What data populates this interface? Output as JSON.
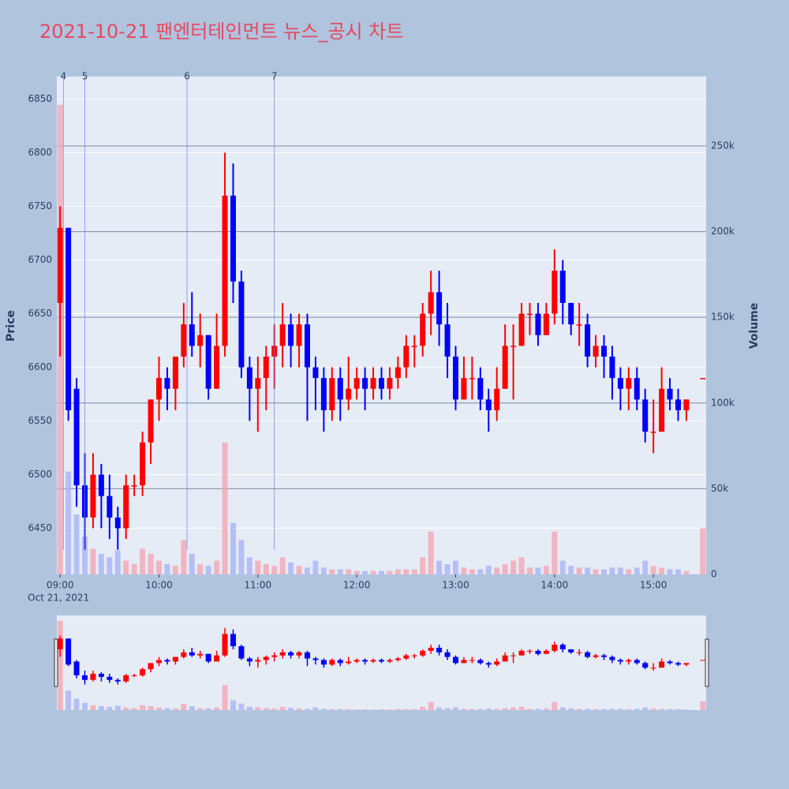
{
  "chart_data": {
    "type": "candlestick",
    "title": "2021-10-21 팬엔터테인먼트 뉴스_공시 차트",
    "ylabel": "Price",
    "y2label": "Volume",
    "x": [
      "2021-10-21 09:00",
      "2021-10-21 09:05",
      "2021-10-21 09:10",
      "2021-10-21 09:15",
      "2021-10-21 09:20",
      "2021-10-21 09:25",
      "2021-10-21 09:30",
      "2021-10-21 09:35",
      "2021-10-21 09:40",
      "2021-10-21 09:45",
      "2021-10-21 09:50",
      "2021-10-21 09:55",
      "2021-10-21 10:00",
      "2021-10-21 10:05",
      "2021-10-21 10:10",
      "2021-10-21 10:15",
      "2021-10-21 10:20",
      "2021-10-21 10:25",
      "2021-10-21 10:30",
      "2021-10-21 10:35",
      "2021-10-21 10:40",
      "2021-10-21 10:45",
      "2021-10-21 10:50",
      "2021-10-21 10:55",
      "2021-10-21 11:00",
      "2021-10-21 11:05",
      "2021-10-21 11:10",
      "2021-10-21 11:15",
      "2021-10-21 11:20",
      "2021-10-21 11:25",
      "2021-10-21 11:30",
      "2021-10-21 11:35",
      "2021-10-21 11:40",
      "2021-10-21 11:45",
      "2021-10-21 11:50",
      "2021-10-21 11:55",
      "2021-10-21 12:00",
      "2021-10-21 12:05",
      "2021-10-21 12:10",
      "2021-10-21 12:15",
      "2021-10-21 12:20",
      "2021-10-21 12:25",
      "2021-10-21 12:30",
      "2021-10-21 12:35",
      "2021-10-21 12:40",
      "2021-10-21 12:45",
      "2021-10-21 12:50",
      "2021-10-21 12:55",
      "2021-10-21 13:00",
      "2021-10-21 13:05",
      "2021-10-21 13:10",
      "2021-10-21 13:15",
      "2021-10-21 13:20",
      "2021-10-21 13:25",
      "2021-10-21 13:30",
      "2021-10-21 13:35",
      "2021-10-21 13:40",
      "2021-10-21 13:45",
      "2021-10-21 13:50",
      "2021-10-21 13:55",
      "2021-10-21 14:00",
      "2021-10-21 14:05",
      "2021-10-21 14:10",
      "2021-10-21 14:15",
      "2021-10-21 14:20",
      "2021-10-21 14:25",
      "2021-10-21 14:30",
      "2021-10-21 14:35",
      "2021-10-21 14:40",
      "2021-10-21 14:45",
      "2021-10-21 14:50",
      "2021-10-21 14:55",
      "2021-10-21 15:00",
      "2021-10-21 15:05",
      "2021-10-21 15:10",
      "2021-10-21 15:15",
      "2021-10-21 15:20",
      "2021-10-21 15:30"
    ],
    "open": [
      6660,
      6730,
      6580,
      6490,
      6460,
      6500,
      6480,
      6460,
      6450,
      6490,
      6490,
      6530,
      6570,
      6590,
      6580,
      6610,
      6640,
      6620,
      6630,
      6580,
      6620,
      6760,
      6680,
      6600,
      6580,
      6590,
      6610,
      6620,
      6640,
      6620,
      6640,
      6600,
      6590,
      6560,
      6590,
      6570,
      6580,
      6590,
      6580,
      6590,
      6580,
      6590,
      6600,
      6620,
      6620,
      6650,
      6670,
      6640,
      6610,
      6570,
      6590,
      6590,
      6570,
      6560,
      6580,
      6620,
      6620,
      6650,
      6650,
      6630,
      6650,
      6690,
      6660,
      6640,
      6640,
      6610,
      6620,
      6610,
      6590,
      6580,
      6590,
      6570,
      6540,
      6540,
      6580,
      6570,
      6560,
      6590
    ],
    "high": [
      6750,
      6730,
      6590,
      6520,
      6520,
      6510,
      6500,
      6470,
      6500,
      6500,
      6540,
      6570,
      6610,
      6600,
      6610,
      6660,
      6670,
      6650,
      6630,
      6650,
      6800,
      6790,
      6690,
      6610,
      6610,
      6620,
      6640,
      6660,
      6650,
      6650,
      6650,
      6610,
      6600,
      6600,
      6600,
      6610,
      6600,
      6600,
      6600,
      6600,
      6600,
      6610,
      6630,
      6630,
      6660,
      6690,
      6690,
      6660,
      6620,
      6610,
      6610,
      6600,
      6580,
      6600,
      6640,
      6640,
      6660,
      6660,
      6660,
      6660,
      6710,
      6700,
      6660,
      6660,
      6650,
      6630,
      6630,
      6620,
      6600,
      6600,
      6600,
      6580,
      6570,
      6600,
      6590,
      6580,
      6570,
      6590
    ],
    "low": [
      6610,
      6550,
      6470,
      6430,
      6450,
      6450,
      6440,
      6430,
      6440,
      6480,
      6480,
      6510,
      6550,
      6560,
      6560,
      6600,
      6610,
      6600,
      6570,
      6580,
      6610,
      6660,
      6590,
      6550,
      6540,
      6560,
      6580,
      6600,
      6600,
      6600,
      6550,
      6560,
      6540,
      6550,
      6550,
      6560,
      6570,
      6560,
      6570,
      6570,
      6570,
      6580,
      6590,
      6600,
      6610,
      6630,
      6620,
      6590,
      6560,
      6570,
      6570,
      6560,
      6540,
      6550,
      6580,
      6570,
      6620,
      6630,
      6620,
      6630,
      6640,
      6640,
      6630,
      6620,
      6600,
      6600,
      6590,
      6570,
      6560,
      6560,
      6560,
      6530,
      6520,
      6540,
      6560,
      6550,
      6550,
      6590
    ],
    "close": [
      6730,
      6560,
      6490,
      6460,
      6500,
      6480,
      6460,
      6450,
      6490,
      6490,
      6530,
      6570,
      6590,
      6580,
      6610,
      6640,
      6620,
      6630,
      6580,
      6620,
      6760,
      6680,
      6600,
      6580,
      6590,
      6610,
      6620,
      6640,
      6620,
      6640,
      6600,
      6590,
      6560,
      6590,
      6570,
      6580,
      6590,
      6580,
      6590,
      6580,
      6590,
      6600,
      6620,
      6620,
      6650,
      6670,
      6640,
      6610,
      6570,
      6590,
      6590,
      6570,
      6560,
      6580,
      6620,
      6620,
      6650,
      6650,
      6630,
      6650,
      6690,
      6660,
      6640,
      6640,
      6610,
      6620,
      6610,
      6590,
      6580,
      6590,
      6570,
      6540,
      6540,
      6580,
      6570,
      6560,
      6570,
      6590
    ],
    "volume": [
      274000,
      60000,
      35000,
      22000,
      15000,
      12000,
      10000,
      14000,
      8000,
      6000,
      15000,
      12000,
      8000,
      6000,
      5000,
      20000,
      12000,
      6000,
      5000,
      8000,
      77000,
      30000,
      20000,
      10000,
      8000,
      6000,
      5000,
      10000,
      7000,
      5000,
      4000,
      8000,
      4000,
      3000,
      3000,
      3000,
      2000,
      2000,
      2000,
      2000,
      2000,
      3000,
      3000,
      3000,
      10000,
      25000,
      8000,
      6000,
      8000,
      4000,
      3000,
      3000,
      5000,
      4000,
      6000,
      8000,
      10000,
      4000,
      4000,
      5000,
      25000,
      8000,
      5000,
      4000,
      4000,
      3000,
      3000,
      4000,
      4000,
      3000,
      4000,
      8000,
      5000,
      4000,
      3000,
      3000,
      2000,
      27000
    ],
    "increasing_color": "#ff0000",
    "decreasing_color": "#0000ff",
    "volume_increasing_color": "#f4a6b4",
    "volume_decreasing_color": "#a9b4f5",
    "xlim": [
      "2021-10-21 08:58",
      "2021-10-21 15:32"
    ],
    "xticks": [
      {
        "value": "2021-10-21 09:00",
        "label": "09:00"
      },
      {
        "value": "2021-10-21 10:00",
        "label": "10:00"
      },
      {
        "value": "2021-10-21 11:00",
        "label": "11:00"
      },
      {
        "value": "2021-10-21 12:00",
        "label": "12:00"
      },
      {
        "value": "2021-10-21 13:00",
        "label": "13:00"
      },
      {
        "value": "2021-10-21 14:00",
        "label": "14:00"
      },
      {
        "value": "2021-10-21 15:00",
        "label": "15:00"
      }
    ],
    "xtick_sublabel": "Oct 21, 2021",
    "ylim": [
      6407,
      6871
    ],
    "yticks": [
      6450,
      6500,
      6550,
      6600,
      6650,
      6700,
      6750,
      6800,
      6850
    ],
    "y2lim": [
      0,
      290500
    ],
    "y2ticks": [
      0,
      {
        "value": 50000,
        "label": "50k"
      },
      {
        "value": 100000,
        "label": "100k"
      },
      {
        "value": 150000,
        "label": "150k"
      },
      {
        "value": 200000,
        "label": "200k"
      },
      {
        "value": 250000,
        "label": "250k"
      }
    ],
    "events": [
      {
        "x": "2021-10-21 09:02",
        "label": "4"
      },
      {
        "x": "2021-10-21 09:15",
        "label": "5"
      },
      {
        "x": "2021-10-21 10:17",
        "label": "6"
      },
      {
        "x": "2021-10-21 11:10",
        "label": "7"
      }
    ],
    "rangeslider": true
  }
}
